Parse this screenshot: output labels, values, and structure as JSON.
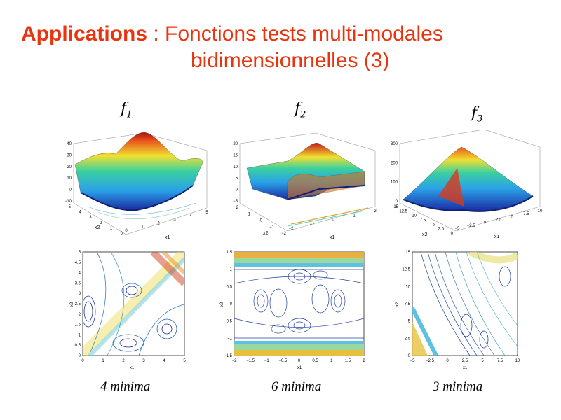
{
  "title": {
    "keyword": "Applications",
    "separator": " : ",
    "line1": "Fonctions tests multi-modales",
    "line2": "bidimensionnelles (3)"
  },
  "functions": [
    {
      "name": "f",
      "sub": "1"
    },
    {
      "name": "f",
      "sub": "2"
    },
    {
      "name": "f",
      "sub": "3"
    }
  ],
  "captions": [
    "4 minima",
    "6 minima",
    "3 minima"
  ],
  "surface_axes": [
    {
      "z_ticks": [
        "40",
        "30",
        "20",
        "10",
        "0",
        "−10"
      ],
      "x1_label": "x1",
      "x2_label": "x2",
      "x1_ticks": [
        "0",
        "1",
        "2",
        "3",
        "4",
        "5"
      ],
      "x2_ticks": [
        "5",
        "4",
        "3",
        "2",
        "1",
        "0"
      ]
    },
    {
      "z_ticks": [
        "20",
        "15",
        "10",
        "5",
        "0",
        "−5"
      ],
      "x1_label": "x1",
      "x2_label": "x2",
      "x1_ticks": [
        "−2",
        "−1",
        "0",
        "1",
        "2"
      ],
      "x2_ticks": [
        "2",
        "1",
        "0",
        "−1",
        "−2"
      ]
    },
    {
      "z_ticks": [
        "300",
        "200",
        "100",
        "0"
      ],
      "x1_label": "x1",
      "x2_label": "x2",
      "x1_ticks": [
        "−5",
        "−2.5",
        "0",
        "2.5",
        "5",
        "7.5",
        "10"
      ],
      "x2_ticks": [
        "15",
        "12.5",
        "10",
        "7.5",
        "5",
        "2.5",
        "0"
      ]
    }
  ],
  "contour_axes": [
    {
      "y_ticks": [
        "5",
        "4.5",
        "4",
        "3.5",
        "3",
        "2.5",
        "2",
        "1.5",
        "1",
        "0.5",
        "0"
      ],
      "x_ticks": [
        "0",
        "1",
        "2",
        "3",
        "4",
        "5"
      ],
      "xlabel": "x1",
      "ylabel": "x2"
    },
    {
      "y_ticks": [
        "1.5",
        "1",
        "0.5",
        "0",
        "−0.5",
        "−1",
        "−1.5"
      ],
      "x_ticks": [
        "−2",
        "−1.5",
        "−1",
        "−0.5",
        "0",
        "0.5",
        "1",
        "1.5",
        "2"
      ],
      "xlabel": "x1",
      "ylabel": "x2"
    },
    {
      "y_ticks": [
        "15",
        "12.5",
        "10",
        "7.5",
        "5",
        "2.5",
        "0"
      ],
      "x_ticks": [
        "−5",
        "−2.5",
        "0",
        "2.5",
        "5",
        "7.5",
        "10"
      ],
      "xlabel": "x1",
      "ylabel": "x2"
    }
  ],
  "colors": {
    "title": "#e8340f",
    "high": "#c8201a",
    "mid": "#f0e030",
    "low": "#1a2aa0"
  }
}
